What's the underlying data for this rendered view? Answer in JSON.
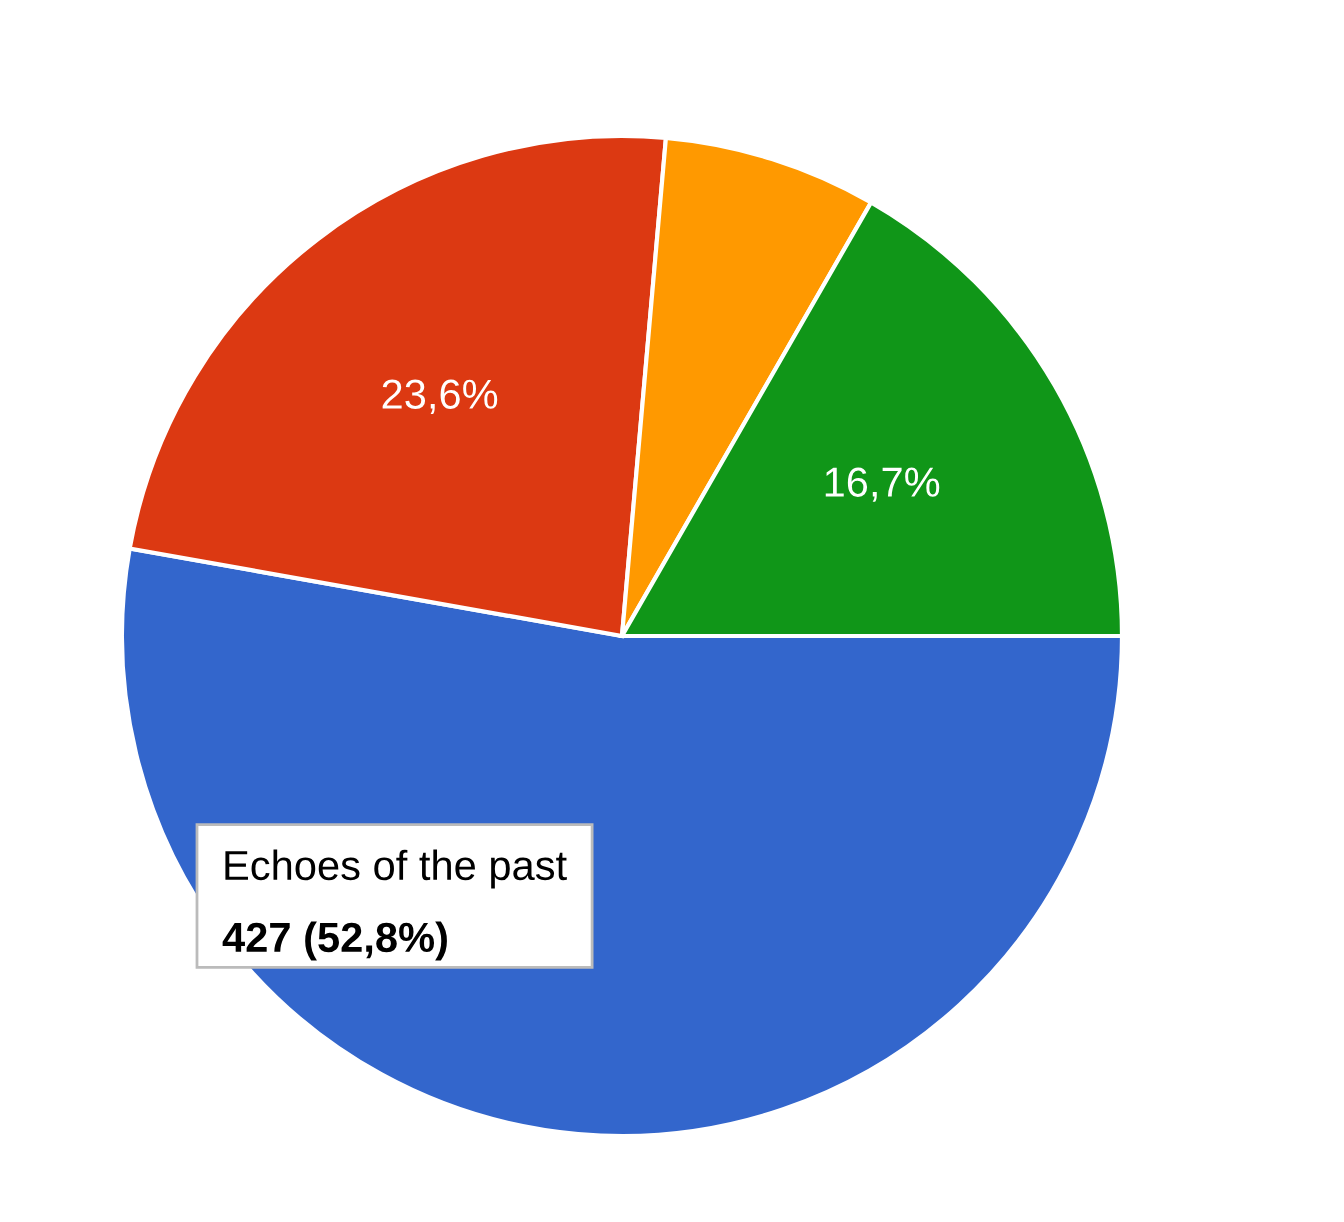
{
  "chart_data": {
    "type": "pie",
    "categories": [
      "Echoes of the past",
      null,
      null,
      null
    ],
    "values": [
      52.8,
      23.6,
      6.9,
      16.7
    ],
    "colors": [
      "#3366cc",
      "#dc3912",
      "#ff9900",
      "#109618"
    ],
    "value_labels": [
      "427 (52,8%)",
      "23,6%",
      null,
      "16,7%"
    ],
    "legend": false
  }
}
